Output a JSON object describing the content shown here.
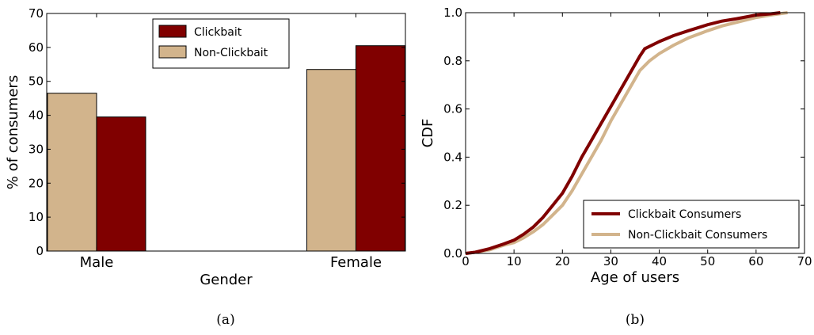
{
  "chart_data": [
    {
      "type": "bar",
      "caption": "(a)",
      "categories": [
        "Male",
        "Female"
      ],
      "series": [
        {
          "name": "Non-Clickbait",
          "values": [
            46.5,
            53.5
          ],
          "color": "#d2b48c"
        },
        {
          "name": "Clickbait",
          "values": [
            39.5,
            60.5
          ],
          "color": "#800000"
        }
      ],
      "legend_order": [
        "Clickbait",
        "Non-Clickbait"
      ],
      "xlabel": "Gender",
      "ylabel": "% of consumers",
      "ylim": [
        0,
        70
      ],
      "yticks": [
        "0",
        "10",
        "20",
        "30",
        "40",
        "50",
        "60",
        "70"
      ],
      "legend_position": "top-center",
      "grid": false
    },
    {
      "type": "line",
      "caption": "(b)",
      "xlabel": "Age of users",
      "ylabel": "CDF",
      "xlim": [
        0,
        70
      ],
      "ylim": [
        0,
        1
      ],
      "xticks": [
        "0",
        "10",
        "20",
        "30",
        "40",
        "50",
        "60",
        "70"
      ],
      "yticks": [
        "0.0",
        "0.2",
        "0.4",
        "0.6",
        "0.8",
        "1.0"
      ],
      "legend_position": "bottom-right",
      "grid": false,
      "series": [
        {
          "name": "Clickbait Consumers",
          "color": "#800000",
          "x": [
            0,
            2,
            5,
            8,
            10,
            12,
            14,
            16,
            18,
            20,
            22,
            24,
            26,
            28,
            30,
            32,
            34,
            36,
            37,
            40,
            43,
            46,
            50,
            53,
            56,
            60,
            63,
            65
          ],
          "y": [
            0,
            0.005,
            0.02,
            0.04,
            0.055,
            0.08,
            0.11,
            0.15,
            0.2,
            0.25,
            0.32,
            0.4,
            0.47,
            0.54,
            0.61,
            0.68,
            0.75,
            0.82,
            0.85,
            0.88,
            0.905,
            0.925,
            0.95,
            0.965,
            0.975,
            0.99,
            0.995,
            1.0
          ]
        },
        {
          "name": "Non-Clickbait Consumers",
          "color": "#d2b48c",
          "x": [
            0,
            2,
            5,
            8,
            10,
            12,
            14,
            16,
            18,
            20,
            22,
            24,
            26,
            28,
            30,
            32,
            34,
            36,
            38,
            40,
            43,
            46,
            50,
            53,
            56,
            60,
            63,
            66.5
          ],
          "y": [
            0,
            0.005,
            0.015,
            0.035,
            0.045,
            0.065,
            0.09,
            0.12,
            0.16,
            0.2,
            0.26,
            0.33,
            0.4,
            0.47,
            0.55,
            0.62,
            0.69,
            0.76,
            0.8,
            0.83,
            0.865,
            0.895,
            0.925,
            0.945,
            0.96,
            0.98,
            0.99,
            1.0
          ]
        }
      ]
    }
  ]
}
